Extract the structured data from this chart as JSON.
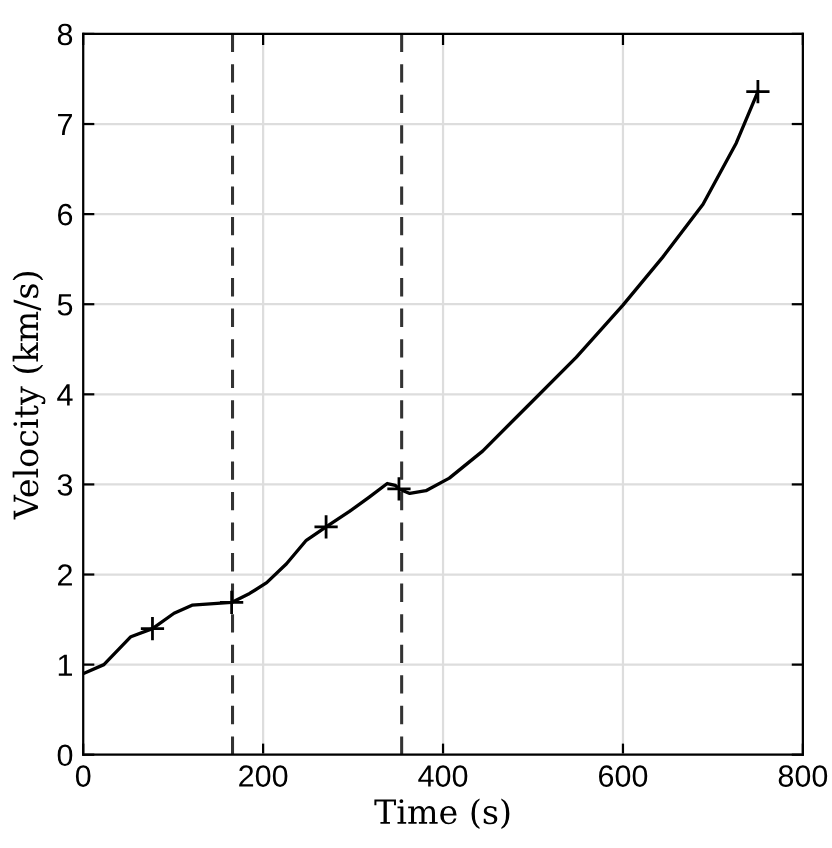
{
  "chart_data": {
    "type": "line",
    "xlabel": "Time (s)",
    "ylabel": "Velocity (km/s)",
    "xlim": [
      0,
      800
    ],
    "ylim": [
      0,
      8
    ],
    "xticks": [
      0,
      200,
      400,
      600,
      800
    ],
    "yticks": [
      0,
      1,
      2,
      3,
      4,
      5,
      6,
      7,
      8
    ],
    "grid": true,
    "legend": false,
    "series": [
      {
        "color": "#000000",
        "marker": "none",
        "line_style": "solid",
        "x": [
          0,
          23,
          53,
          77,
          101,
          121,
          149,
          165,
          185,
          204,
          226,
          248,
          270,
          296,
          318,
          338,
          347,
          351,
          363,
          381,
          407,
          444,
          496,
          548,
          600,
          644,
          689,
          726,
          750
        ],
        "values": [
          0.9,
          1.0,
          1.31,
          1.4,
          1.57,
          1.66,
          1.68,
          1.69,
          1.79,
          1.91,
          2.12,
          2.38,
          2.53,
          2.7,
          2.86,
          3.01,
          2.99,
          2.95,
          2.9,
          2.93,
          3.07,
          3.37,
          3.89,
          4.41,
          4.99,
          5.52,
          6.11,
          6.79,
          7.36
        ]
      },
      {
        "type": "scatter",
        "color": "#000000",
        "marker": "cross",
        "x": [
          77,
          165,
          270,
          351,
          750
        ],
        "values": [
          1.4,
          1.69,
          2.53,
          2.95,
          7.36
        ]
      }
    ],
    "ref_lines": [
      {
        "axis": "x",
        "value": 166,
        "color": "#333333",
        "line_style": "dashed"
      },
      {
        "axis": "x",
        "value": 354,
        "color": "#333333",
        "line_style": "dashed"
      }
    ]
  }
}
